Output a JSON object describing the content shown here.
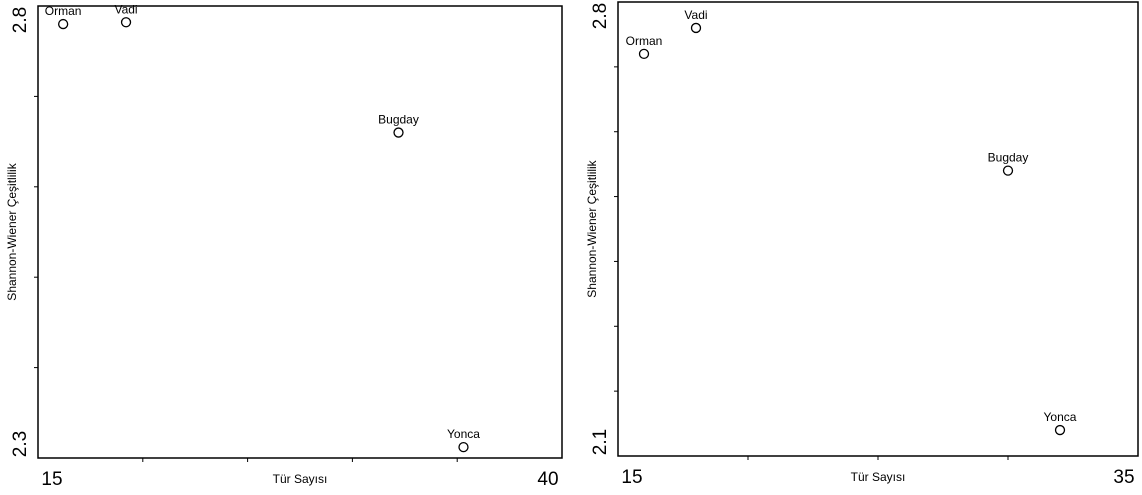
{
  "chart_data": [
    {
      "type": "scatter",
      "title": "",
      "xlabel": "Tür Sayısı",
      "ylabel": "Shannon-Wiener Çeşitlilik",
      "xlim": [
        15,
        40
      ],
      "ylim": [
        2.3,
        2.8
      ],
      "x_tick_labels": [
        "15",
        "40"
      ],
      "y_tick_labels": [
        "2.3",
        "2.8"
      ],
      "x_minor_ticks": [
        20,
        25,
        30,
        35
      ],
      "y_minor_ticks": [
        2.4,
        2.5,
        2.6,
        2.7
      ],
      "grid": false,
      "marker": "open-circle",
      "points": [
        {
          "label": "Orman",
          "x": 16.2,
          "y": 2.78
        },
        {
          "label": "Vadi",
          "x": 19.2,
          "y": 2.782
        },
        {
          "label": "Bugday",
          "x": 32.2,
          "y": 2.66
        },
        {
          "label": "Yonca",
          "x": 35.3,
          "y": 2.312
        }
      ]
    },
    {
      "type": "scatter",
      "title": "",
      "xlabel": "Tür Sayısı",
      "ylabel": "Shannon-Wiener Çeşitlilik",
      "xlim": [
        15,
        35
      ],
      "ylim": [
        2.1,
        2.8
      ],
      "x_tick_labels": [
        "15",
        "35"
      ],
      "y_tick_labels": [
        "2.1",
        "2.8"
      ],
      "x_minor_ticks": [
        20,
        25,
        30
      ],
      "y_minor_ticks": [
        2.2,
        2.3,
        2.4,
        2.5,
        2.6,
        2.7
      ],
      "grid": false,
      "marker": "open-circle",
      "points": [
        {
          "label": "Orman",
          "x": 16.0,
          "y": 2.72
        },
        {
          "label": "Vadi",
          "x": 18.0,
          "y": 2.76
        },
        {
          "label": "Bugday",
          "x": 30.0,
          "y": 2.54
        },
        {
          "label": "Yonca",
          "x": 32.0,
          "y": 2.14
        }
      ]
    }
  ]
}
